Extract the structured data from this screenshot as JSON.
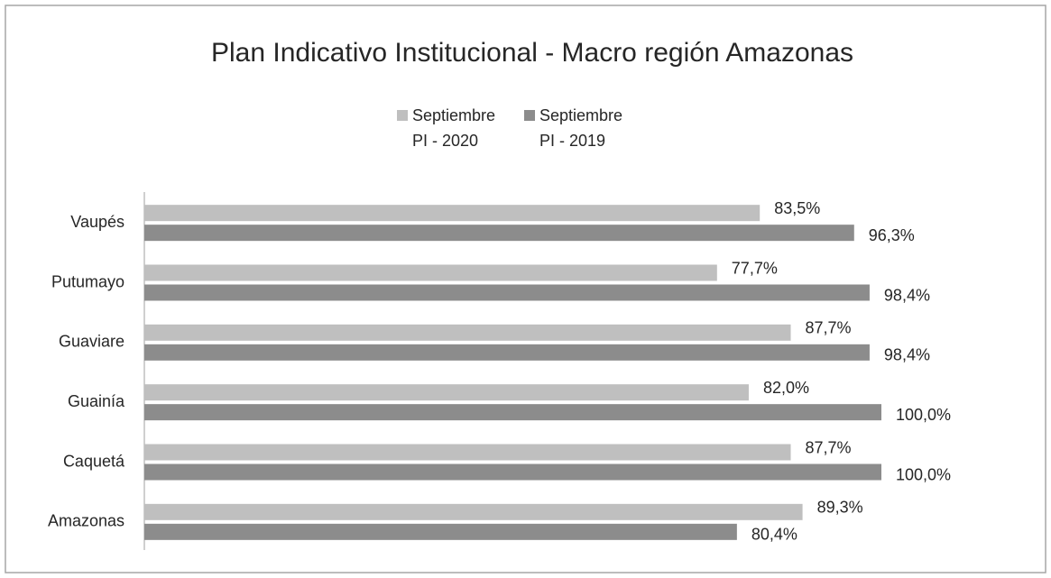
{
  "chart_data": {
    "type": "hbar",
    "title": "Plan Indicativo Institucional - Macro región Amazonas",
    "categories": [
      "Vaupés",
      "Putumayo",
      "Guaviare",
      "Guainía",
      "Caquetá",
      "Amazonas"
    ],
    "series": [
      {
        "name": "Septiembre PI - 2020",
        "color": "#bfbfbf",
        "values": [
          83.5,
          77.7,
          87.7,
          82.0,
          87.7,
          89.3
        ],
        "value_labels": [
          "83,5%",
          "77,7%",
          "87,7%",
          "82,0%",
          "87,7%",
          "89,3%"
        ]
      },
      {
        "name": "Septiembre PI - 2019",
        "color": "#8c8c8c",
        "values": [
          96.3,
          98.4,
          98.4,
          100,
          100,
          80.4
        ],
        "value_labels": [
          "96,3%",
          "98,4%",
          "98,4%",
          "100,0%",
          "100,0%",
          "80,4%"
        ]
      }
    ],
    "xlim": [
      0,
      100
    ],
    "legend": "top"
  }
}
